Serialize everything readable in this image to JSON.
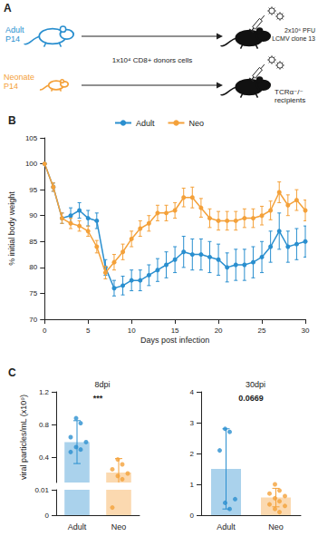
{
  "diagram": {
    "panel": "A",
    "donors": [
      {
        "lines": [
          "Adult",
          "P14"
        ],
        "color": "#2a8fcf"
      },
      {
        "lines": [
          "Neonate",
          "P14"
        ],
        "color": "#f4a13a"
      }
    ],
    "transfer": "1x10⁴ CD8+ donors cells",
    "infection": [
      "2x10⁶ PFU",
      "LCMV clone 13"
    ],
    "recipients": [
      "TCRα⁻/⁻",
      "recipients"
    ]
  },
  "chart_data": [
    {
      "panel": "B",
      "type": "line",
      "xlabel": "Days post infection",
      "ylabel": "% initial body weight",
      "x": [
        0,
        1,
        2,
        3,
        4,
        5,
        6,
        7,
        8,
        9,
        10,
        11,
        12,
        13,
        14,
        15,
        16,
        17,
        18,
        19,
        20,
        21,
        22,
        23,
        24,
        25,
        26,
        27,
        28,
        29,
        30
      ],
      "series": [
        {
          "name": "Adult",
          "color": "#2a8fcf",
          "values": [
            100,
            95.5,
            89.5,
            90,
            91,
            89.5,
            89,
            80,
            76,
            76.5,
            77.5,
            77.5,
            78.5,
            79.5,
            80.5,
            81.5,
            83,
            82.5,
            82.5,
            82,
            81.5,
            80,
            80.5,
            80.5,
            81,
            82,
            84,
            87,
            84,
            84.5,
            85
          ],
          "errors": [
            0,
            0.8,
            1,
            1.5,
            1.5,
            1.5,
            1.5,
            1.5,
            1.5,
            1.8,
            2,
            2,
            2,
            2.2,
            2.5,
            2.5,
            3,
            3,
            3,
            3,
            3,
            2.8,
            3,
            3,
            3,
            3,
            3,
            3.5,
            3,
            3,
            3
          ]
        },
        {
          "name": "Neo",
          "color": "#f4a13a",
          "values": [
            100,
            95.5,
            89.5,
            88.5,
            88,
            87,
            84,
            79,
            81,
            83,
            85.5,
            87.5,
            88.5,
            90.5,
            90.5,
            91,
            93.5,
            93.5,
            91.5,
            89.5,
            89,
            89,
            89,
            89.5,
            89.5,
            90,
            91,
            94.5,
            92,
            93,
            91
          ],
          "errors": [
            0,
            0.8,
            1,
            1,
            1,
            1,
            1.2,
            1.2,
            1.5,
            1.5,
            1.5,
            1.5,
            1.5,
            1.5,
            1.5,
            1.5,
            1.8,
            2,
            1.8,
            1.8,
            1.8,
            1.8,
            1.8,
            1.8,
            1.8,
            1.8,
            1.8,
            2,
            2,
            2,
            2
          ]
        }
      ],
      "xlim": [
        0,
        30
      ],
      "xticks": [
        0,
        5,
        10,
        15,
        20,
        25,
        30
      ],
      "ylim": [
        70,
        105
      ],
      "yticks": [
        70,
        75,
        80,
        85,
        90,
        95,
        100,
        105
      ],
      "grid": false,
      "legend": "top",
      "marker": "circle"
    },
    {
      "panel": "C",
      "type": "bar",
      "title": "8dpi",
      "ylabel": "viral particles/mL (x10⁹)",
      "categories": [
        "Adult",
        "Neo"
      ],
      "values": [
        0.59,
        0.22
      ],
      "errors": [
        0.26,
        0.17
      ],
      "colors": [
        "#2a8fcf",
        "#f4a13a"
      ],
      "points": [
        [
          0.88,
          0.82,
          0.65,
          0.59,
          0.53,
          0.5,
          0.47
        ],
        [
          0.38,
          0.32,
          0.26,
          0.21,
          0.18,
          0.14,
          0.003
        ]
      ],
      "y_segments": [
        {
          "ylim": [
            0,
            0.01
          ],
          "yticks": [
            0,
            0.01
          ]
        },
        {
          "ylim": [
            0.1,
            1.2
          ],
          "yticks": [
            0.4,
            0.8,
            1.2
          ]
        }
      ],
      "annotations": [
        "***"
      ],
      "grid": false
    },
    {
      "type": "bar",
      "title": "30dpi",
      "categories": [
        "Adult",
        "Neo"
      ],
      "values": [
        1.5,
        0.57
      ],
      "errors": [
        1.3,
        0.3
      ],
      "colors": [
        "#2a8fcf",
        "#f4a13a"
      ],
      "points": [
        [
          2.8,
          2.7,
          2.1,
          0.52,
          0.4,
          0.2
        ],
        [
          1.0,
          0.8,
          0.7,
          0.62,
          0.55,
          0.45,
          0.35,
          0.3,
          0.2,
          0.1
        ]
      ],
      "ylim": [
        0,
        4
      ],
      "yticks": [
        0,
        1,
        2,
        3,
        4
      ],
      "annotations": [
        "0.0669"
      ],
      "grid": false
    }
  ]
}
